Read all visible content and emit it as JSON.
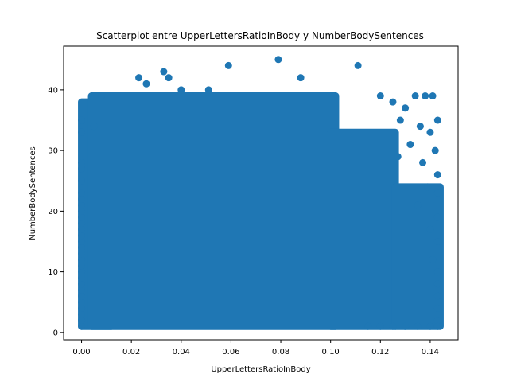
{
  "chart_data": {
    "type": "scatter",
    "title": "Scatterplot entre UpperLettersRatioInBody y NumberBodySentences",
    "xlabel": "UpperLettersRatioInBody",
    "ylabel": "NumberBodySentences",
    "xlim": [
      -0.0072,
      0.1512
    ],
    "ylim": [
      -1.2,
      47.2
    ],
    "grid": false,
    "x_ticks": [
      0.0,
      0.02,
      0.04,
      0.06,
      0.08,
      0.1,
      0.12,
      0.14
    ],
    "x_tick_labels": [
      "0.00",
      "0.02",
      "0.04",
      "0.06",
      "0.08",
      "0.10",
      "0.12",
      "0.14"
    ],
    "y_ticks": [
      0,
      10,
      20,
      30,
      40
    ],
    "y_tick_labels": [
      "0",
      "10",
      "20",
      "30",
      "40"
    ],
    "colors": {
      "marker": "#1f77b4"
    },
    "series": [
      {
        "points": [
          [
            0.0,
            1
          ],
          [
            0.0,
            2
          ],
          [
            0.0,
            3
          ],
          [
            0.0,
            4
          ],
          [
            0.0,
            5
          ],
          [
            0.0,
            6
          ],
          [
            0.0,
            7
          ],
          [
            0.0,
            8
          ],
          [
            0.0,
            9
          ],
          [
            0.0,
            10
          ],
          [
            0.0,
            11
          ],
          [
            0.0,
            12
          ],
          [
            0.0,
            13
          ],
          [
            0.0,
            14
          ],
          [
            0.0,
            15
          ],
          [
            0.0,
            16
          ],
          [
            0.0,
            17
          ],
          [
            0.0,
            18
          ],
          [
            0.0,
            19
          ],
          [
            0.0,
            20
          ],
          [
            0.0,
            21
          ],
          [
            0.0,
            22
          ],
          [
            0.0,
            23
          ],
          [
            0.0,
            25
          ],
          [
            0.0,
            27
          ],
          [
            0.0,
            28
          ],
          [
            0.0,
            33
          ],
          [
            0.0,
            35
          ],
          [
            0.005,
            34
          ],
          [
            0.008,
            39
          ],
          [
            0.023,
            42
          ],
          [
            0.026,
            41
          ],
          [
            0.033,
            43
          ],
          [
            0.035,
            42
          ],
          [
            0.04,
            40
          ],
          [
            0.051,
            40
          ],
          [
            0.059,
            44
          ],
          [
            0.079,
            45
          ],
          [
            0.088,
            42
          ],
          [
            0.111,
            44
          ],
          [
            0.12,
            39
          ],
          [
            0.125,
            38
          ],
          [
            0.13,
            37
          ],
          [
            0.134,
            39
          ],
          [
            0.138,
            39
          ],
          [
            0.141,
            39
          ],
          [
            0.128,
            35
          ],
          [
            0.136,
            34
          ],
          [
            0.14,
            33
          ],
          [
            0.143,
            35
          ],
          [
            0.132,
            31
          ],
          [
            0.142,
            30
          ],
          [
            0.127,
            29
          ],
          [
            0.137,
            28
          ],
          [
            0.143,
            26
          ],
          [
            0.139,
            24
          ],
          [
            0.143,
            23
          ],
          [
            0.135,
            21
          ],
          [
            0.143,
            19
          ],
          [
            0.14,
            17
          ],
          [
            0.143,
            15
          ],
          [
            0.141,
            12
          ],
          [
            0.143,
            10
          ],
          [
            0.143,
            8
          ],
          [
            0.143,
            6
          ],
          [
            0.143,
            4
          ],
          [
            0.143,
            2
          ],
          [
            0.143,
            1
          ],
          [
            0.115,
            1
          ],
          [
            0.12,
            1
          ],
          [
            0.125,
            1
          ],
          [
            0.13,
            1
          ],
          [
            0.135,
            1
          ],
          [
            0.14,
            1
          ]
        ],
        "dense_regions": [
          {
            "x": [
              0.0,
              0.012
            ],
            "y": [
              1,
              38
            ]
          },
          {
            "x": [
              0.004,
              0.102
            ],
            "y": [
              1,
              39
            ]
          },
          {
            "x": [
              0.1,
              0.126
            ],
            "y": [
              1,
              33
            ]
          },
          {
            "x": [
              0.126,
              0.144
            ],
            "y": [
              1,
              24
            ]
          }
        ]
      }
    ]
  }
}
